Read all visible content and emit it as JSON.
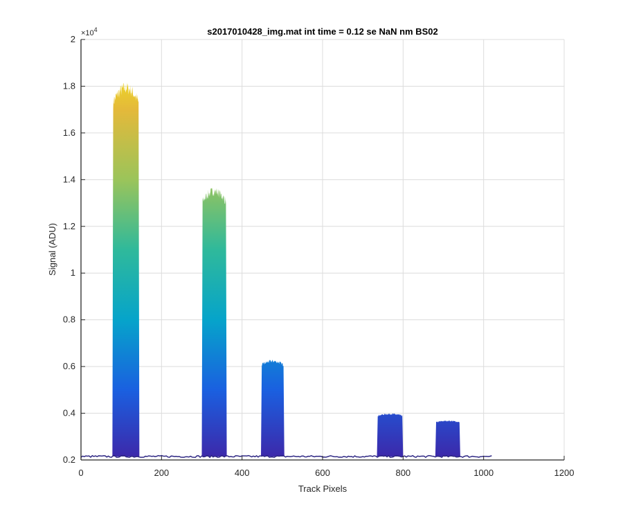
{
  "chart_data": {
    "type": "area",
    "title": "s2017010428_img.mat int time = 0.12 se  NaN nm BS02",
    "xlabel": "Track Pixels",
    "ylabel": "Signal (ADU)",
    "xlim": [
      0,
      1200
    ],
    "ylim": [
      0.2,
      2
    ],
    "y_exponent_label": "×10",
    "y_exponent": "4",
    "grid": true,
    "legend": "none",
    "x_ticks": [
      "0",
      "200",
      "400",
      "600",
      "800",
      "1000",
      "1200"
    ],
    "x_tick_values": [
      0,
      200,
      400,
      600,
      800,
      1000,
      1200
    ],
    "y_ticks": [
      "0.2",
      "0.4",
      "0.6",
      "0.8",
      "1",
      "1.2",
      "1.4",
      "1.6",
      "1.8",
      "2"
    ],
    "y_tick_values": [
      0.2,
      0.4,
      0.6,
      0.8,
      1.0,
      1.2,
      1.4,
      1.6,
      1.8,
      2.0
    ],
    "baseline": 0.215,
    "x_data_max": 1020,
    "peaks": [
      {
        "x_start": 78,
        "x_end": 145,
        "max": 1.82
      },
      {
        "x_start": 300,
        "x_end": 362,
        "max": 1.37
      },
      {
        "x_start": 447,
        "x_end": 505,
        "max": 0.63
      },
      {
        "x_start": 735,
        "x_end": 800,
        "max": 0.4
      },
      {
        "x_start": 880,
        "x_end": 942,
        "max": 0.37
      }
    ],
    "colors": {
      "colormap": [
        "#3e26a8",
        "#1a60e0",
        "#06a4ca",
        "#2fb99b",
        "#9bc45a",
        "#e4b93a",
        "#f9fb0e"
      ],
      "baseline_line": "#2f2884",
      "grid": "#dcdcdc",
      "axis": "#262626"
    }
  }
}
